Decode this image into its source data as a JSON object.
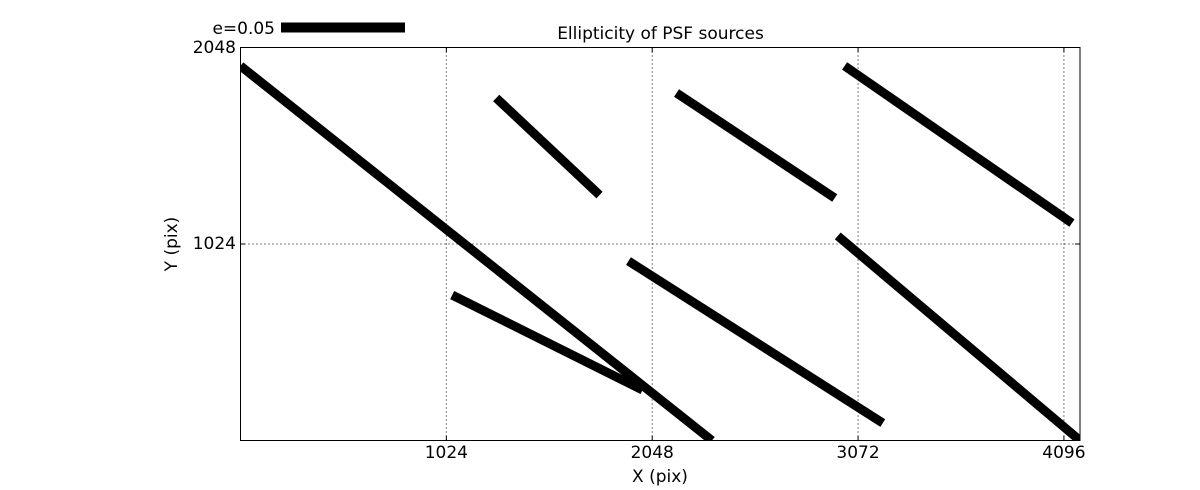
{
  "title": "Ellipticity of PSF sources",
  "legend": {
    "label": "e=0.05"
  },
  "colors": {
    "stroke": "#000000",
    "background": "#ffffff",
    "grid": "#000000"
  },
  "chart_data": {
    "type": "line",
    "subtype": "ellipticity-whisker-plot",
    "title": "Ellipticity of PSF sources",
    "xlabel": "X (pix)",
    "ylabel": "Y (pix)",
    "xlim": [
      0,
      4176
    ],
    "ylim": [
      0,
      2048
    ],
    "x_ticks": [
      1024,
      2048,
      3072,
      4096
    ],
    "x_tick_labels": [
      "1024",
      "2048",
      "3072",
      "4096"
    ],
    "y_ticks": [
      1024,
      2048
    ],
    "y_tick_labels": [
      "1024",
      "2048"
    ],
    "grid": "dotted",
    "legend": {
      "label": "e=0.05",
      "position": "top-left-above-axes"
    },
    "segments": [
      {
        "x1": 0,
        "y1": 1952,
        "x2": 2345,
        "y2": 0
      },
      {
        "x1": 1272,
        "y1": 1785,
        "x2": 1786,
        "y2": 1279
      },
      {
        "x1": 2169,
        "y1": 1811,
        "x2": 2956,
        "y2": 1264
      },
      {
        "x1": 3005,
        "y1": 1952,
        "x2": 4136,
        "y2": 1133
      },
      {
        "x1": 1930,
        "y1": 935,
        "x2": 3195,
        "y2": 91
      },
      {
        "x1": 2971,
        "y1": 1066,
        "x2": 4176,
        "y2": 0
      },
      {
        "x1": 1053,
        "y1": 758,
        "x2": 2000,
        "y2": 263
      }
    ]
  }
}
